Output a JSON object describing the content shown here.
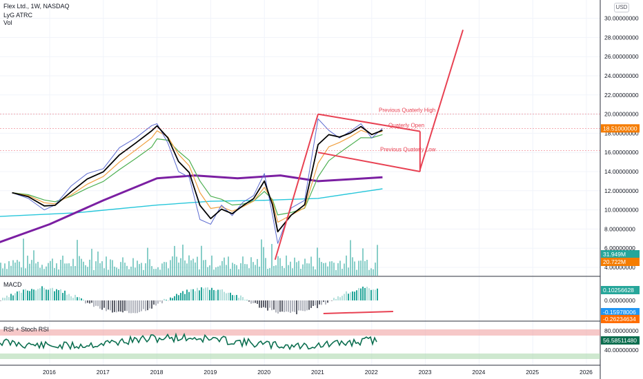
{
  "legend": {
    "symbol_line": "Flex Ltd., 1W, NASDAQ",
    "indicator1": "LyG ATRC",
    "indicator2": "Vol"
  },
  "currency_button": "USD",
  "panels": {
    "macd_label": "MACD",
    "rsi_label": "RSI + Stoch RSI"
  },
  "colors": {
    "price_line": "#5b6ad0",
    "ema_fast": "#000000",
    "ema_mid": "#f0a040",
    "ema_slow": "#4caf50",
    "sma200": "#7b1fa2",
    "long_ma": "#26c6da",
    "trendline": "#e84152",
    "volume": "#26a69a",
    "rsi_line": "#0b6e4f",
    "badge_price": "#f57c00",
    "badge_vol": "#26a69a",
    "badge_macd": "#2196f3",
    "badge_signal": "#ff6d00",
    "badge_hist": "#e84152",
    "badge_rsi": "#0b6e4f"
  },
  "chart_data": {
    "type": "line",
    "title": "Flex Ltd., 1W, NASDAQ",
    "x_ticks": [
      "2016",
      "2017",
      "2018",
      "2019",
      "2020",
      "2021",
      "2022",
      "2023",
      "2024",
      "2025",
      "2026"
    ],
    "y_ticks": [
      "30.00000000",
      "28.00000000",
      "26.00000000",
      "24.00000000",
      "22.00000000",
      "20.00000000",
      "18.00000000",
      "16.00000000",
      "14.00000000",
      "12.00000000",
      "10.00000000",
      "8.00000000",
      "6.00000000",
      "4.00000000"
    ],
    "ylim": [
      4,
      31
    ],
    "price_series": {
      "x": [
        2015.3,
        2015.6,
        2015.9,
        2016.1,
        2016.4,
        2016.7,
        2017.0,
        2017.3,
        2017.6,
        2017.9,
        2018.0,
        2018.2,
        2018.4,
        2018.6,
        2018.8,
        2019.0,
        2019.2,
        2019.4,
        2019.6,
        2019.8,
        2020.0,
        2020.15,
        2020.25,
        2020.5,
        2020.75,
        2021.0,
        2021.2,
        2021.4,
        2021.6,
        2021.8,
        2022.0,
        2022.2
      ],
      "y": [
        11.8,
        11.2,
        10.0,
        10.5,
        12.5,
        13.8,
        14.3,
        16.5,
        17.5,
        18.8,
        19.0,
        17.0,
        14.0,
        13.4,
        9.0,
        8.5,
        10.5,
        9.4,
        10.8,
        11.5,
        13.8,
        9.5,
        6.5,
        10.2,
        11.0,
        19.5,
        18.3,
        17.5,
        18.2,
        19.0,
        17.5,
        18.5
      ]
    },
    "sma200_series": {
      "x": [
        2015.0,
        2016.0,
        2017.0,
        2018.0,
        2018.7,
        2019.5,
        2020.3,
        2021.0,
        2021.6,
        2022.2
      ],
      "y": [
        6.5,
        8.5,
        11.0,
        13.3,
        13.6,
        13.3,
        13.6,
        13.0,
        13.2,
        13.4
      ]
    },
    "long_ma_series": {
      "x": [
        2015.0,
        2016.5,
        2018.0,
        2019.0,
        2020.0,
        2021.0,
        2022.2
      ],
      "y": [
        9.3,
        9.7,
        10.5,
        10.9,
        11.0,
        11.2,
        12.2
      ]
    },
    "annotations": {
      "prev_q_high": "Previous Quaterly High",
      "q_open": "Quaterly Open",
      "prev_q_low": "Previous Quaterly Low"
    },
    "trendlines": {
      "flagpole": {
        "x": [
          2020.2,
          2021.0
        ],
        "y": [
          4.8,
          20.0
        ]
      },
      "channel_top": {
        "x": [
          2021.0,
          2022.9
        ],
        "y": [
          20.0,
          18.2
        ]
      },
      "channel_bottom": {
        "x": [
          2021.0,
          2022.9
        ],
        "y": [
          16.0,
          14.0
        ]
      },
      "projection": {
        "x": [
          2022.9,
          2023.7
        ],
        "y": [
          14.2,
          28.8
        ]
      },
      "channel_right": {
        "x": [
          2022.9,
          2022.9
        ],
        "y": [
          14.0,
          18.2
        ]
      },
      "macd_divergence": {
        "x": [
          2021.1,
          2022.4
        ],
        "y": [
          -0.36,
          -0.33
        ]
      }
    },
    "price_badge": "18.51000000",
    "volume_badges": [
      "31.949M",
      "20.722M"
    ],
    "macd": {
      "y_ticks": [
        "0.00000000"
      ],
      "badges": [
        "0.10256628",
        "-0.15978006",
        "-0.26234634"
      ]
    },
    "rsi": {
      "y_ticks": [
        "80.00000000",
        "40.00000000"
      ],
      "badge": "56.58511480"
    }
  }
}
